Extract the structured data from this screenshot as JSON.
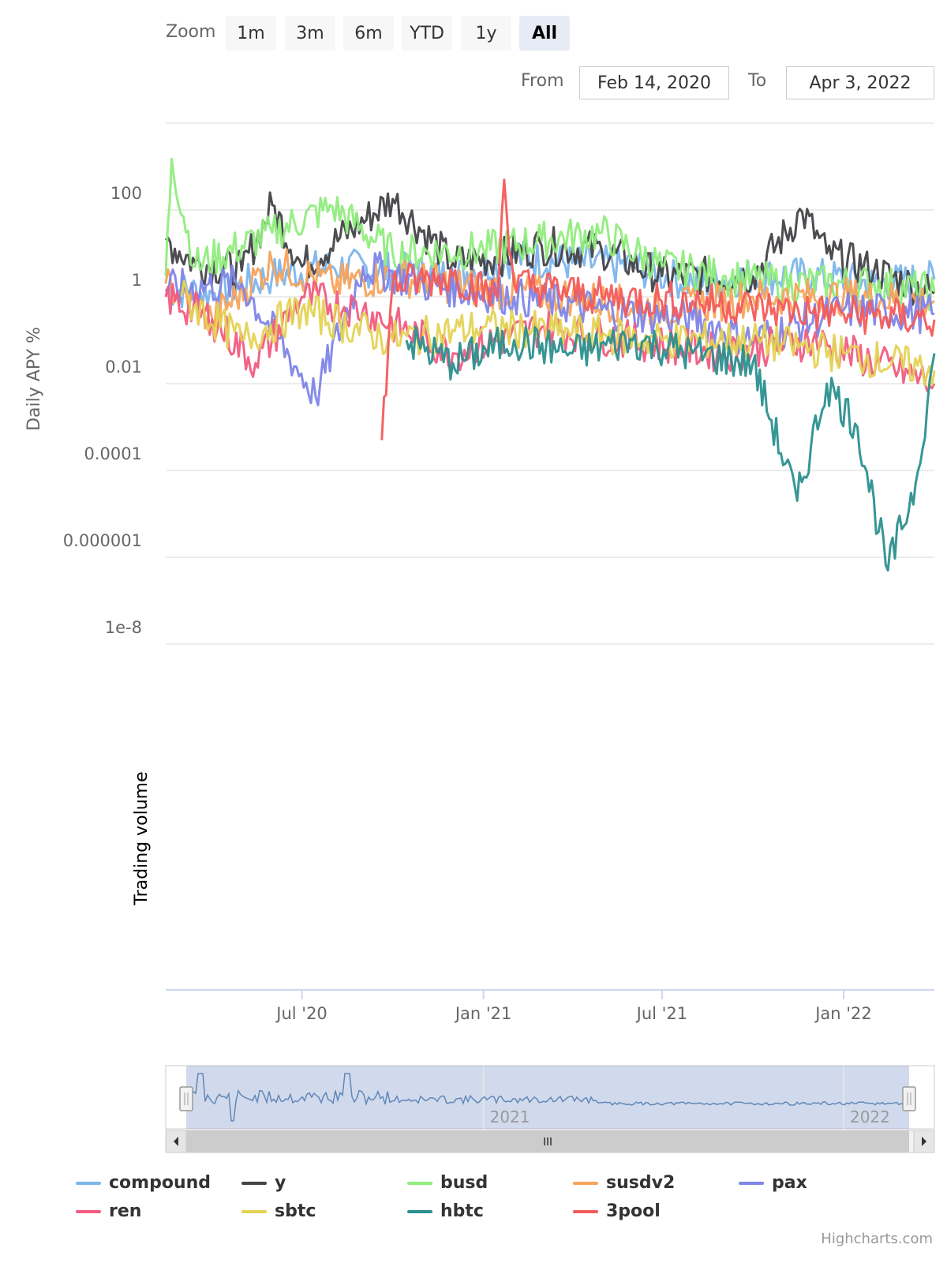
{
  "range_selector": {
    "zoom_label": "Zoom",
    "buttons": [
      "1m",
      "3m",
      "6m",
      "YTD",
      "1y",
      "All"
    ],
    "active": "All",
    "from_label": "From",
    "from_value": "Feb 14, 2020",
    "to_label": "To",
    "to_value": "Apr 3, 2022"
  },
  "chart_data": {
    "type": "line",
    "title": "",
    "ylabel": "Daily APY %",
    "ylabel_secondary": "Trading volume",
    "y_scale": "log",
    "y_ticks": [
      "100",
      "1",
      "0.01",
      "0.0001",
      "0.000001",
      "1e-8"
    ],
    "y_tick_values": [
      100,
      1,
      0.01,
      0.0001,
      1e-06,
      1e-08
    ],
    "ylim": [
      1e-08,
      10000
    ],
    "x_ticks": [
      "Jul '20",
      "Jan '21",
      "Jul '21",
      "Jan '22"
    ],
    "x_tick_dates": [
      "2020-07-01",
      "2021-01-01",
      "2021-07-01",
      "2022-01-01"
    ],
    "xlim": [
      "2020-02-14",
      "2022-04-03"
    ],
    "grid": true,
    "legend_position": "bottom",
    "series": [
      {
        "name": "compound",
        "color": "#7cb5ec",
        "points": [
          [
            "2020-02-14",
            1.5
          ],
          [
            "2020-04-01",
            1.2
          ],
          [
            "2020-06-01",
            3
          ],
          [
            "2020-08-01",
            5
          ],
          [
            "2020-10-01",
            4
          ],
          [
            "2020-12-01",
            3
          ],
          [
            "2021-02-01",
            8
          ],
          [
            "2021-04-01",
            6
          ],
          [
            "2021-06-01",
            5
          ],
          [
            "2021-08-01",
            2
          ],
          [
            "2021-10-01",
            3
          ],
          [
            "2021-12-01",
            3
          ],
          [
            "2022-02-01",
            2
          ],
          [
            "2022-04-03",
            2.5
          ]
        ]
      },
      {
        "name": "y",
        "color": "#434348",
        "points": [
          [
            "2020-02-14",
            20
          ],
          [
            "2020-03-15",
            6
          ],
          [
            "2020-05-01",
            4
          ],
          [
            "2020-06-01",
            130
          ],
          [
            "2020-07-01",
            5
          ],
          [
            "2020-10-01",
            180
          ],
          [
            "2020-12-01",
            6
          ],
          [
            "2021-01-15",
            8
          ],
          [
            "2021-03-01",
            15
          ],
          [
            "2021-05-01",
            12
          ],
          [
            "2021-07-01",
            3
          ],
          [
            "2021-10-01",
            3
          ],
          [
            "2021-11-20",
            90
          ],
          [
            "2021-12-15",
            10
          ],
          [
            "2022-02-01",
            4
          ],
          [
            "2022-04-03",
            1.2
          ]
        ]
      },
      {
        "name": "busd",
        "color": "#90ed7d",
        "points": [
          [
            "2020-02-14",
            3
          ],
          [
            "2020-02-20",
            1500
          ],
          [
            "2020-03-15",
            5
          ],
          [
            "2020-06-01",
            30
          ],
          [
            "2020-08-01",
            120
          ],
          [
            "2020-10-01",
            10
          ],
          [
            "2021-01-01",
            12
          ],
          [
            "2021-03-01",
            20
          ],
          [
            "2021-05-01",
            30
          ],
          [
            "2021-07-01",
            5
          ],
          [
            "2021-09-01",
            3
          ],
          [
            "2021-11-01",
            2
          ],
          [
            "2022-02-01",
            2
          ],
          [
            "2022-04-03",
            1.3
          ]
        ]
      },
      {
        "name": "susdv2",
        "color": "#f7a35c",
        "points": [
          [
            "2020-02-14",
            2
          ],
          [
            "2020-04-01",
            0.3
          ],
          [
            "2020-06-01",
            6
          ],
          [
            "2020-08-01",
            2
          ],
          [
            "2020-10-01",
            3
          ],
          [
            "2021-01-01",
            1.5
          ],
          [
            "2021-04-01",
            1
          ],
          [
            "2021-07-01",
            0.5
          ],
          [
            "2021-10-01",
            1
          ],
          [
            "2022-01-01",
            1
          ],
          [
            "2022-04-03",
            0.8
          ]
        ]
      },
      {
        "name": "pax",
        "color": "#8085e9",
        "points": [
          [
            "2020-02-14",
            1.5
          ],
          [
            "2020-05-01",
            2
          ],
          [
            "2020-07-15",
            0.005
          ],
          [
            "2020-09-01",
            5
          ],
          [
            "2020-11-01",
            2
          ],
          [
            "2021-02-01",
            1
          ],
          [
            "2021-05-01",
            0.5
          ],
          [
            "2021-08-01",
            0.3
          ],
          [
            "2021-10-01",
            0.1
          ],
          [
            "2022-01-01",
            0.5
          ],
          [
            "2022-04-03",
            0.4
          ]
        ]
      },
      {
        "name": "ren",
        "color": "#f15c80",
        "points": [
          [
            "2020-02-14",
            1
          ],
          [
            "2020-04-01",
            0.3
          ],
          [
            "2020-05-15",
            0.03
          ],
          [
            "2020-07-01",
            1
          ],
          [
            "2020-09-01",
            0.5
          ],
          [
            "2020-12-01",
            0.05
          ],
          [
            "2021-03-01",
            0.2
          ],
          [
            "2021-06-01",
            0.1
          ],
          [
            "2021-09-01",
            0.05
          ],
          [
            "2021-12-01",
            0.1
          ],
          [
            "2022-04-03",
            0.01
          ]
        ]
      },
      {
        "name": "sbtc",
        "color": "#e4d354",
        "points": [
          [
            "2020-03-01",
            1
          ],
          [
            "2020-05-01",
            0.1
          ],
          [
            "2020-07-01",
            0.5
          ],
          [
            "2020-10-01",
            0.1
          ],
          [
            "2021-01-01",
            0.2
          ],
          [
            "2021-04-01",
            0.15
          ],
          [
            "2021-07-01",
            0.1
          ],
          [
            "2021-10-01",
            0.1
          ],
          [
            "2022-01-01",
            0.05
          ],
          [
            "2022-04-03",
            0.02
          ]
        ]
      },
      {
        "name": "hbtc",
        "color": "#2b908f",
        "points": [
          [
            "2020-10-15",
            0.1
          ],
          [
            "2020-12-01",
            0.03
          ],
          [
            "2021-02-01",
            0.1
          ],
          [
            "2021-04-01",
            0.05
          ],
          [
            "2021-06-01",
            0.1
          ],
          [
            "2021-08-01",
            0.05
          ],
          [
            "2021-10-01",
            0.03
          ],
          [
            "2021-11-15",
            2e-05
          ],
          [
            "2021-12-15",
            0.01
          ],
          [
            "2022-01-15",
            0.001
          ],
          [
            "2022-02-15",
            5e-07
          ],
          [
            "2022-03-15",
            5e-05
          ],
          [
            "2022-04-03",
            0.05
          ]
        ]
      },
      {
        "name": "3pool",
        "color": "#f45b5b",
        "points": [
          [
            "2020-09-20",
            0.0005
          ],
          [
            "2020-10-01",
            2
          ],
          [
            "2020-12-01",
            3
          ],
          [
            "2021-01-15",
            1
          ],
          [
            "2021-01-22",
            500
          ],
          [
            "2021-02-01",
            2
          ],
          [
            "2021-05-01",
            1
          ],
          [
            "2021-08-01",
            0.8
          ],
          [
            "2021-11-01",
            0.5
          ],
          [
            "2022-01-01",
            0.4
          ],
          [
            "2022-04-03",
            0.3
          ]
        ]
      }
    ],
    "navigator": {
      "labels": [
        "2021",
        "2022"
      ]
    }
  },
  "credits": "Highcharts.com"
}
